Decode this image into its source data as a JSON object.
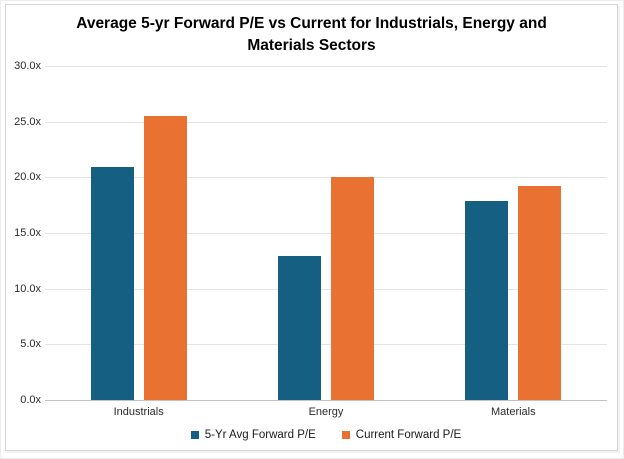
{
  "chart_data": {
    "type": "bar",
    "title": "Average 5-yr Forward P/E vs Current for Industrials, Energy and Materials Sectors",
    "categories": [
      "Industrials",
      "Energy",
      "Materials"
    ],
    "series": [
      {
        "name": "5-Yr Avg Forward P/E",
        "color": "#156082",
        "values": [
          20.9,
          12.9,
          17.9
        ]
      },
      {
        "name": "Current Forward P/E",
        "color": "#E97132",
        "values": [
          25.5,
          20.0,
          19.2
        ]
      }
    ],
    "ylim": [
      0,
      30
    ],
    "ytick_step": 5,
    "ytick_labels": [
      "0.0x",
      "5.0x",
      "10.0x",
      "15.0x",
      "20.0x",
      "25.0x",
      "30.0x"
    ],
    "value_suffix": "x",
    "grid": true,
    "legend_position": "bottom"
  },
  "colors": {
    "series_blue": "#156082",
    "series_orange": "#E97132",
    "gridline": "#e4e4e4",
    "axis_line": "#c3c3c3",
    "frame_border": "#d6d6d6",
    "text": "#2b2b2b",
    "title_text": "#000000"
  }
}
